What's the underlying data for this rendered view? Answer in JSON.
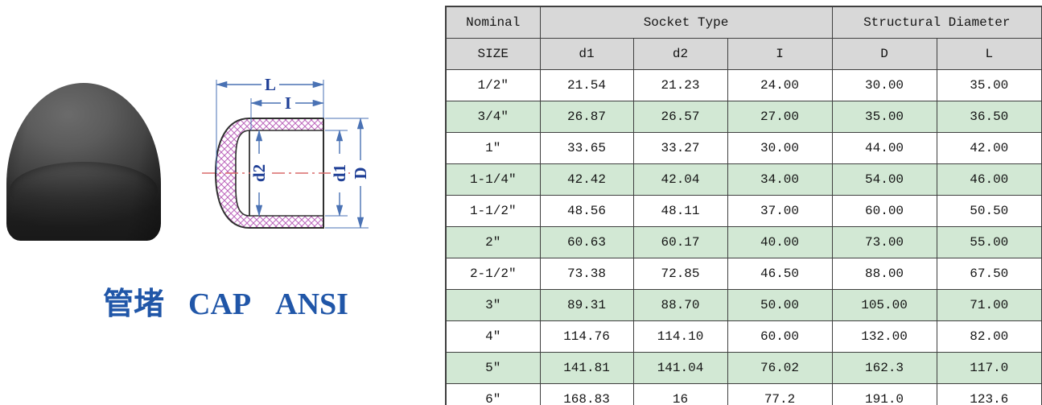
{
  "product": {
    "caption": {
      "chinese": "管堵",
      "english": "CAP",
      "standard": "ANSI"
    },
    "caption_color": "#2056a8"
  },
  "diagram": {
    "labels": {
      "length_L": "L",
      "socket_depth_I": "I",
      "inner_d2": "d2",
      "inner_d1": "d1",
      "outer_D": "D"
    },
    "colors": {
      "dimension_line": "#4a72b4",
      "label_text": "#1f3f96",
      "hatch": "#bb64bb",
      "outline": "#2f2f2f",
      "centerline": "#d96a6a"
    }
  },
  "table": {
    "header": {
      "nominal_line1": "Nominal",
      "nominal_line2": "SIZE",
      "socket_group": "Socket Type",
      "structural_group": "Structural Diameter",
      "sub_columns": [
        "d1",
        "d2",
        "I",
        "D",
        "L"
      ]
    },
    "rows": [
      [
        "1/2″",
        "21.54",
        "21.23",
        "24.00",
        "30.00",
        "35.00"
      ],
      [
        "3/4″",
        "26.87",
        "26.57",
        "27.00",
        "35.00",
        "36.50"
      ],
      [
        "1″",
        "33.65",
        "33.27",
        "30.00",
        "44.00",
        "42.00"
      ],
      [
        "1-1/4″",
        "42.42",
        "42.04",
        "34.00",
        "54.00",
        "46.00"
      ],
      [
        "1-1/2″",
        "48.56",
        "48.11",
        "37.00",
        "60.00",
        "50.50"
      ],
      [
        "2″",
        "60.63",
        "60.17",
        "40.00",
        "73.00",
        "55.00"
      ],
      [
        "2-1/2″",
        "73.38",
        "72.85",
        "46.50",
        "88.00",
        "67.50"
      ],
      [
        "3″",
        "89.31",
        "88.70",
        "50.00",
        "105.00",
        "71.00"
      ],
      [
        "4″",
        "114.76",
        "114.10",
        "60.00",
        "132.00",
        "82.00"
      ],
      [
        "5″",
        "141.81",
        "141.04",
        "76.02",
        "162.3",
        "117.0"
      ],
      [
        "6″",
        "168.83",
        "16",
        "77.2",
        "191.0",
        "123.6"
      ]
    ],
    "colors": {
      "header_bg": "#d8d8d8",
      "row_alt_bg": "#d2e8d4",
      "border": "#3f3f3f"
    }
  }
}
